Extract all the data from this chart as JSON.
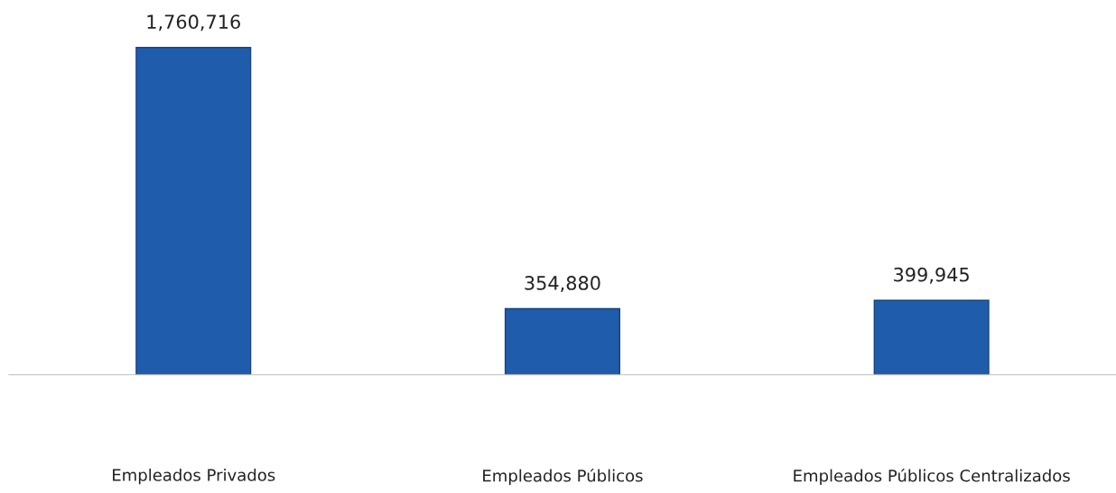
{
  "chart_data": {
    "type": "bar",
    "categories": [
      "Empleados Privados",
      "Empleados Públicos",
      "Empleados Públicos Centralizados"
    ],
    "values": [
      1760716,
      354880,
      399945
    ],
    "value_labels": [
      "1,760,716",
      "354,880",
      "399,945"
    ],
    "color": "#1f5cab",
    "grid": false,
    "legend": false
  }
}
